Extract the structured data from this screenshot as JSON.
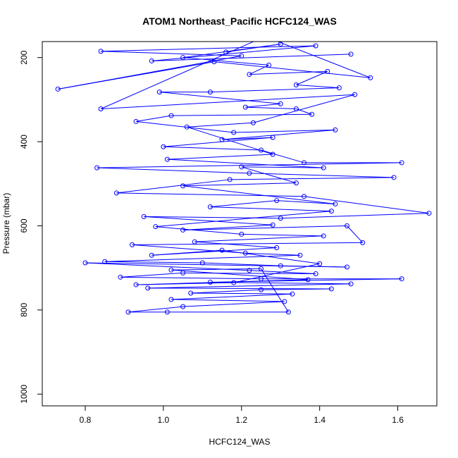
{
  "chart_data": {
    "type": "line",
    "title": "ATOM1 Northeast_Pacific HCFC124_WAS",
    "xlabel": "HCFC124_WAS",
    "ylabel": "Pressure (mbar)",
    "xlim": [
      0.69,
      1.7
    ],
    "ylim": [
      1028,
      162
    ],
    "y_reversed": true,
    "x_ticks": [
      0.8,
      1.0,
      1.2,
      1.4,
      1.6
    ],
    "x_tick_labels": [
      "0.8",
      "1.0",
      "1.2",
      "1.4",
      "1.6"
    ],
    "y_ticks": [
      200,
      400,
      600,
      800,
      1000
    ],
    "y_tick_labels": [
      "200",
      "400",
      "600",
      "800",
      "1000"
    ],
    "grid": false,
    "line_color": "#0000ff",
    "marker": "open-circle",
    "series": [
      {
        "points": [
          [
            1.16,
            187
          ],
          [
            1.3,
            168
          ],
          [
            1.05,
            200
          ],
          [
            1.27,
            218
          ],
          [
            1.22,
            240
          ],
          [
            1.42,
            233
          ],
          [
            1.34,
            265
          ],
          [
            1.45,
            272
          ],
          [
            1.12,
            282
          ],
          [
            0.99,
            282
          ],
          [
            1.3,
            310
          ],
          [
            1.21,
            318
          ],
          [
            1.34,
            322
          ],
          [
            1.38,
            335
          ],
          [
            1.02,
            338
          ],
          [
            0.93,
            352
          ],
          [
            1.18,
            378
          ],
          [
            1.44,
            372
          ],
          [
            1.15,
            395
          ],
          [
            1.28,
            390
          ],
          [
            1.0,
            412
          ],
          [
            1.25,
            420
          ],
          [
            1.36,
            450
          ],
          [
            1.61,
            450
          ],
          [
            0.83,
            462
          ],
          [
            1.22,
            475
          ],
          [
            1.59,
            485
          ],
          [
            1.17,
            490
          ],
          [
            0.88,
            522
          ],
          [
            1.36,
            530
          ],
          [
            1.68,
            570
          ],
          [
            1.3,
            582
          ],
          [
            0.95,
            578
          ],
          [
            1.28,
            598
          ],
          [
            1.05,
            610
          ],
          [
            1.47,
            600
          ],
          [
            1.51,
            640
          ],
          [
            0.92,
            645
          ],
          [
            1.21,
            665
          ],
          [
            1.35,
            670
          ],
          [
            0.85,
            685
          ],
          [
            1.1,
            688
          ],
          [
            1.3,
            695
          ],
          [
            1.47,
            698
          ],
          [
            0.8,
            688
          ],
          [
            1.22,
            706
          ],
          [
            1.39,
            714
          ],
          [
            1.05,
            712
          ],
          [
            0.89,
            722
          ],
          [
            1.25,
            726
          ],
          [
            1.61,
            726
          ],
          [
            1.12,
            734
          ],
          [
            1.48,
            738
          ],
          [
            0.96,
            748
          ],
          [
            1.43,
            750
          ],
          [
            1.25,
            752
          ],
          [
            1.07,
            760
          ],
          [
            1.33,
            762
          ],
          [
            1.02,
            775
          ],
          [
            1.31,
            780
          ],
          [
            1.05,
            792
          ],
          [
            0.91,
            805
          ],
          [
            1.01,
            805
          ],
          [
            1.32,
            805
          ],
          [
            1.25,
            702
          ],
          [
            1.02,
            705
          ],
          [
            1.37,
            728
          ],
          [
            0.93,
            740
          ],
          [
            1.18,
            735
          ],
          [
            1.4,
            690
          ],
          [
            1.15,
            658
          ],
          [
            0.97,
            670
          ],
          [
            1.29,
            652
          ],
          [
            1.08,
            638
          ],
          [
            1.41,
            624
          ],
          [
            1.2,
            620
          ],
          [
            0.98,
            602
          ],
          [
            1.43,
            565
          ],
          [
            1.12,
            555
          ],
          [
            1.29,
            540
          ],
          [
            1.44,
            548
          ],
          [
            1.05,
            505
          ],
          [
            1.34,
            498
          ],
          [
            1.2,
            460
          ],
          [
            1.41,
            462
          ],
          [
            1.01,
            442
          ],
          [
            1.28,
            430
          ],
          [
            1.06,
            365
          ],
          [
            1.23,
            355
          ],
          [
            1.49,
            288
          ],
          [
            0.84,
            322
          ],
          [
            1.26,
            150
          ],
          [
            1.53,
            248
          ],
          [
            1.13,
            210
          ],
          [
            0.73,
            275
          ],
          [
            1.2,
            196
          ],
          [
            0.84,
            185
          ],
          [
            1.39,
            172
          ],
          [
            0.97,
            208
          ],
          [
            1.48,
            192
          ]
        ]
      }
    ]
  }
}
